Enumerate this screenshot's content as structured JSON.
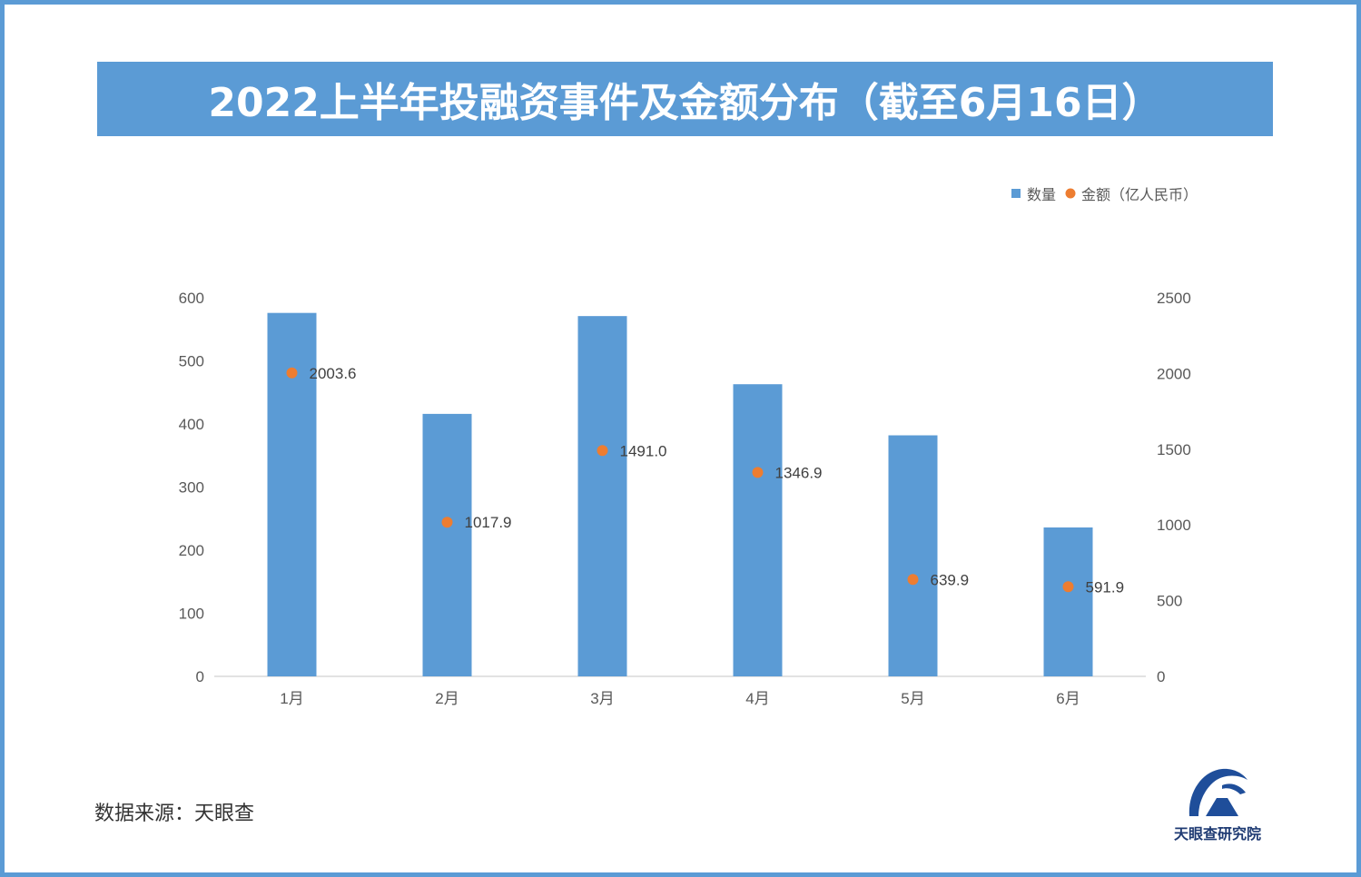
{
  "title": "2022上半年投融资事件及金额分布（截至6月16日）",
  "source": "数据来源：天眼查",
  "logo": {
    "text": "天眼查研究院",
    "icon": "tianyancha-logo-icon"
  },
  "colors": {
    "frame": "#5b9bd5",
    "bar": "#5b9bd5",
    "dot": "#ed7d31",
    "banner_text": "#ffffff"
  },
  "chart_data": {
    "type": "bar",
    "categories": [
      "1月",
      "2月",
      "3月",
      "4月",
      "5月",
      "6月"
    ],
    "series": [
      {
        "name": "数量",
        "type": "bar",
        "axis": "left",
        "values": [
          576,
          416,
          571,
          463,
          382,
          236
        ]
      },
      {
        "name": "金额（亿人民币）",
        "type": "scatter",
        "axis": "right",
        "values": [
          2003.6,
          1017.9,
          1491.0,
          1346.9,
          639.9,
          591.9
        ],
        "labels": [
          "2003.6",
          "1017.9",
          "1491.0",
          "1346.9",
          "639.9",
          "591.9"
        ]
      }
    ],
    "y_left": {
      "ticks": [
        "0",
        "100",
        "200",
        "300",
        "400",
        "500",
        "600"
      ],
      "ylim": [
        0,
        600
      ]
    },
    "y_right": {
      "ticks": [
        "0",
        "500",
        "1000",
        "1500",
        "2000",
        "2500"
      ],
      "ylim": [
        0,
        2500
      ]
    },
    "legend": {
      "placement": "top-right",
      "items": [
        "数量",
        "金额（亿人民币）"
      ]
    },
    "grid": false
  }
}
